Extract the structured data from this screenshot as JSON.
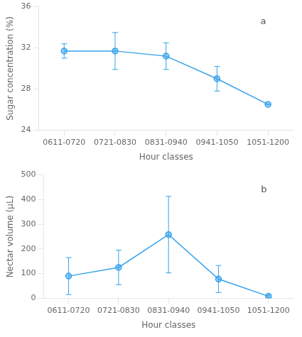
{
  "chart_data": [
    {
      "type": "line",
      "categories": [
        "0611-0720",
        "0721-0830",
        "0831-0940",
        "0941-1050",
        "1051-1200"
      ],
      "values": [
        31.7,
        31.7,
        31.2,
        29.0,
        26.5
      ],
      "errors": [
        0.7,
        1.8,
        1.3,
        1.2,
        0.0
      ],
      "xlabel": "Hour classes",
      "ylabel": "Sugar concentration (%)",
      "ylim": [
        24,
        36
      ],
      "yticks": [
        24,
        28,
        32,
        36
      ],
      "annotation": "a",
      "grid": false,
      "marker": "circle",
      "line_style": "solid"
    },
    {
      "type": "line",
      "categories": [
        "0611-0720",
        "0721-0830",
        "0831-0940",
        "0941-1050",
        "1051-1200"
      ],
      "values": [
        90,
        125,
        258,
        78,
        8
      ],
      "errors": [
        75,
        70,
        155,
        55,
        5
      ],
      "xlabel": "Hour classes",
      "ylabel": "Nectar volume (µL)",
      "ylim": [
        0,
        500
      ],
      "yticks": [
        0,
        100,
        200,
        300,
        400,
        500
      ],
      "annotation": "b",
      "grid": false,
      "marker": "circle",
      "line_style": "solid"
    }
  ]
}
